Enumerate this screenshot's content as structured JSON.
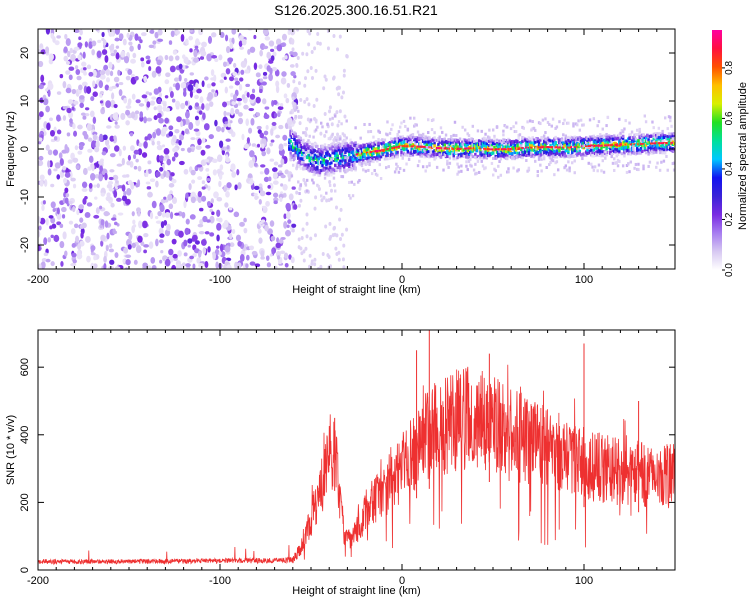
{
  "title": "S126.2025.300.16.51.R21",
  "chart_data": [
    {
      "type": "heatmap",
      "title": "S126.2025.300.16.51.R21",
      "xlabel": "Height of straight line (km)",
      "ylabel": "Frequency (Hz)",
      "xlim": [
        -200,
        150
      ],
      "ylim": [
        -25,
        25
      ],
      "xticks": [
        -200,
        -100,
        0,
        100
      ],
      "yticks": [
        -20,
        -10,
        0,
        10,
        20
      ],
      "colorbar": {
        "label": "Normalized spectral amplitude",
        "range": [
          0,
          0.95
        ],
        "ticks": [
          0.0,
          0.2,
          0.4,
          0.6,
          0.8
        ],
        "stops": [
          "#ffffff",
          "#d7c8f2",
          "#a77df0",
          "#7a2be2",
          "#3a22d8",
          "#1212f0",
          "#00c8ff",
          "#00e09a",
          "#22e022",
          "#d8f000",
          "#ffc000",
          "#ff5000",
          "#ff1040",
          "#ff00a0"
        ]
      },
      "features": {
        "noise_region_x": [
          -200,
          -60
        ],
        "noise_amplitude_peak": 0.25,
        "carrier_start_x": -62,
        "carrier_freq_hz": [
          [
            -62,
            1.5
          ],
          [
            -55,
            -1.0
          ],
          [
            -50,
            -2.0
          ],
          [
            -45,
            -2.5
          ],
          [
            -40,
            -2.2
          ],
          [
            -30,
            -1.5
          ],
          [
            -20,
            -0.8
          ],
          [
            -10,
            -0.2
          ],
          [
            0,
            0.6
          ],
          [
            10,
            0.5
          ],
          [
            20,
            0.2
          ],
          [
            30,
            0.0
          ],
          [
            40,
            0.2
          ],
          [
            50,
            -0.1
          ],
          [
            60,
            0.0
          ],
          [
            70,
            0.3
          ],
          [
            80,
            0.4
          ],
          [
            90,
            0.3
          ],
          [
            100,
            0.6
          ],
          [
            110,
            0.7
          ],
          [
            120,
            0.9
          ],
          [
            130,
            1.0
          ],
          [
            140,
            1.2
          ],
          [
            150,
            1.3
          ]
        ],
        "carrier_peak_amplitude": 0.9
      }
    },
    {
      "type": "line",
      "xlabel": "Height of straight line (km)",
      "ylabel": "SNR (10 * v/v)",
      "xlim": [
        -200,
        150
      ],
      "ylim": [
        0,
        710
      ],
      "xticks": [
        -200,
        -100,
        0,
        100
      ],
      "yticks": [
        0,
        200,
        400,
        600
      ],
      "series": [
        {
          "name": "SNR",
          "color": "#ee3030",
          "envelope": [
            [
              -200,
              25
            ],
            [
              -150,
              25
            ],
            [
              -100,
              27
            ],
            [
              -70,
              28
            ],
            [
              -60,
              30
            ],
            [
              -55,
              70
            ],
            [
              -50,
              150
            ],
            [
              -45,
              230
            ],
            [
              -40,
              330
            ],
            [
              -37,
              390
            ],
            [
              -35,
              250
            ],
            [
              -32,
              120
            ],
            [
              -28,
              80
            ],
            [
              -25,
              120
            ],
            [
              -20,
              170
            ],
            [
              -15,
              210
            ],
            [
              -10,
              240
            ],
            [
              -5,
              270
            ],
            [
              0,
              300
            ],
            [
              5,
              330
            ],
            [
              10,
              370
            ],
            [
              15,
              400
            ],
            [
              20,
              420
            ],
            [
              30,
              440
            ],
            [
              40,
              450
            ],
            [
              50,
              430
            ],
            [
              60,
              400
            ],
            [
              70,
              380
            ],
            [
              80,
              360
            ],
            [
              90,
              340
            ],
            [
              100,
              310
            ],
            [
              110,
              300
            ],
            [
              120,
              290
            ],
            [
              130,
              285
            ],
            [
              140,
              280
            ],
            [
              150,
              280
            ]
          ],
          "noise_spread": 0.35,
          "notable_peaks": [
            [
              -37,
              450
            ],
            [
              8,
              650
            ],
            [
              15,
              710
            ],
            [
              48,
              640
            ],
            [
              100,
              670
            ],
            [
              130,
              500
            ]
          ]
        }
      ]
    }
  ]
}
